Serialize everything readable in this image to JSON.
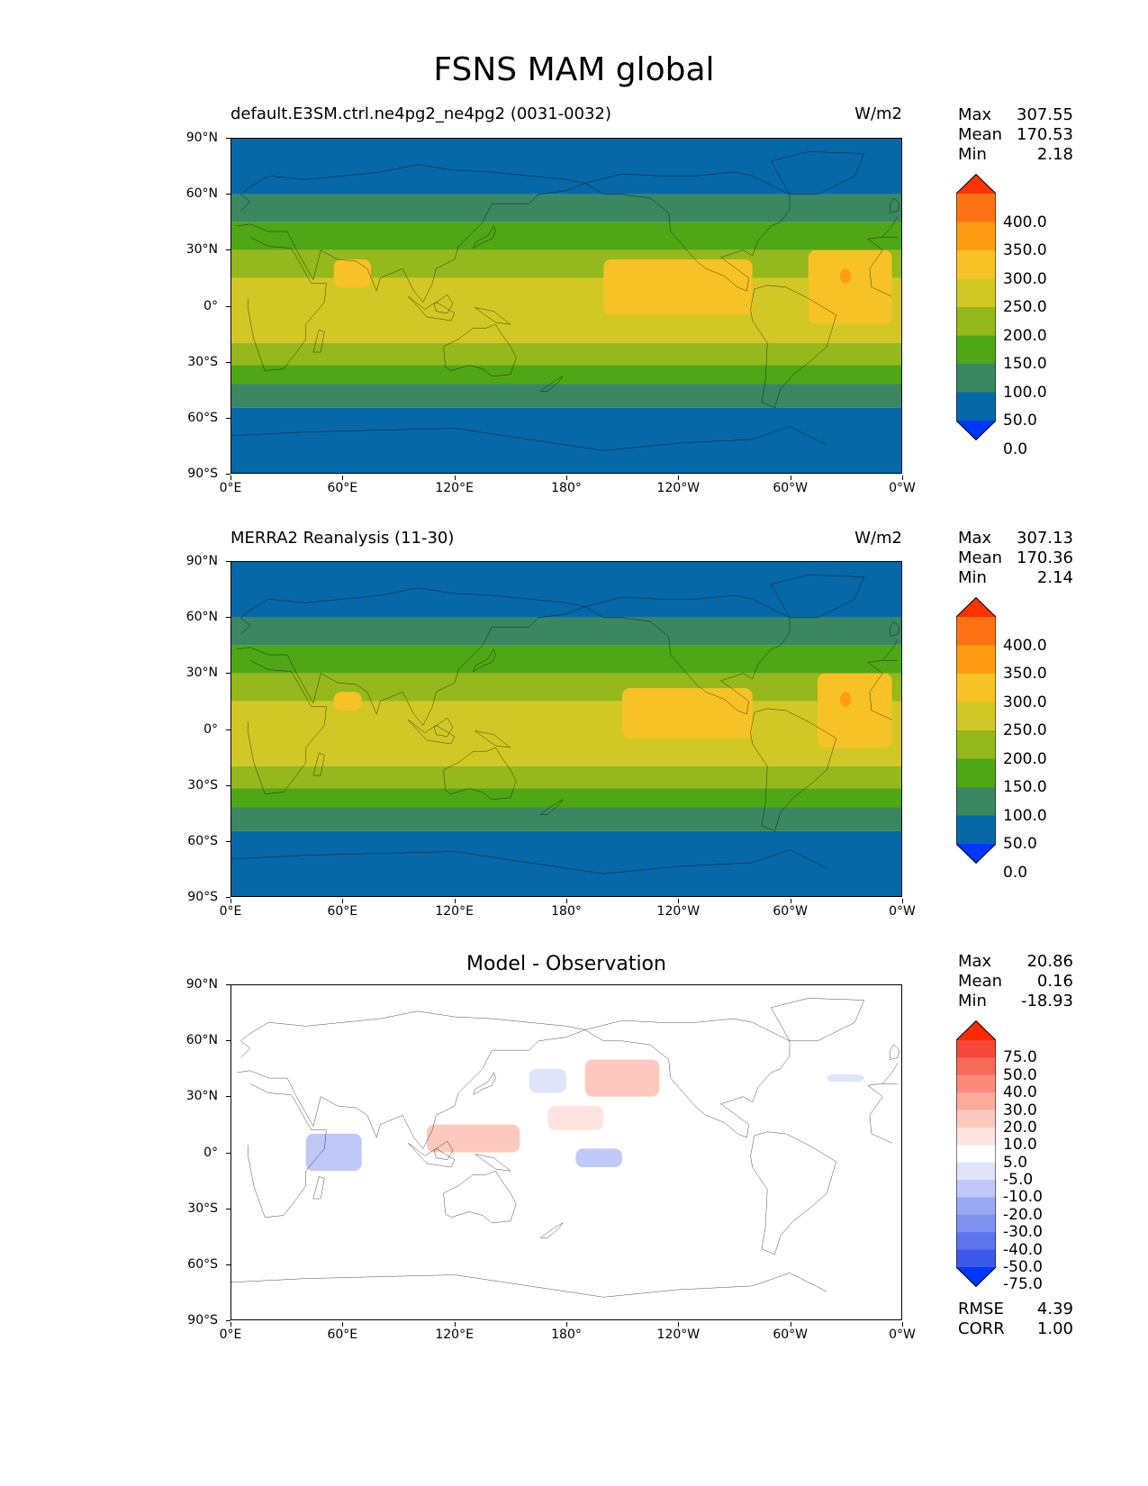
{
  "figure": {
    "title": "FSNS MAM global"
  },
  "axes": {
    "yticks": [
      "90°N",
      "60°N",
      "30°N",
      "0°",
      "30°S",
      "60°S",
      "90°S"
    ],
    "xticks": [
      "0°E",
      "60°E",
      "120°E",
      "180°",
      "120°W",
      "60°W",
      "0°W"
    ]
  },
  "panels": [
    {
      "id": "model",
      "title": "default.E3SM.ctrl.ne4pg2_ne4pg2 (0031-0032)",
      "units": "W/m2",
      "stats": [
        {
          "label": "Max",
          "value": "307.55"
        },
        {
          "label": "Mean",
          "value": "170.53"
        },
        {
          "label": "Min",
          "value": "2.18"
        }
      ],
      "colorbar": {
        "labels": [
          "400.0",
          "350.0",
          "300.0",
          "250.0",
          "200.0",
          "150.0",
          "100.0",
          "50.0",
          "0.0"
        ],
        "colors": [
          "#ff3300",
          "#ff7214",
          "#ff9c14",
          "#f7c225",
          "#d2c825",
          "#95b81c",
          "#4fa716",
          "#3a8761",
          "#0768a8",
          "#0037ff"
        ]
      }
    },
    {
      "id": "obs",
      "title": "MERRA2 Reanalysis (11-30)",
      "units": "W/m2",
      "stats": [
        {
          "label": "Max",
          "value": "307.13"
        },
        {
          "label": "Mean",
          "value": "170.36"
        },
        {
          "label": "Min",
          "value": "2.14"
        }
      ],
      "colorbar": {
        "labels": [
          "400.0",
          "350.0",
          "300.0",
          "250.0",
          "200.0",
          "150.0",
          "100.0",
          "50.0",
          "0.0"
        ],
        "colors": [
          "#ff3300",
          "#ff7214",
          "#ff9c14",
          "#f7c225",
          "#d2c825",
          "#95b81c",
          "#4fa716",
          "#3a8761",
          "#0768a8",
          "#0037ff"
        ]
      }
    },
    {
      "id": "diff",
      "title": "Model - Observation",
      "stats": [
        {
          "label": "Max",
          "value": "20.86"
        },
        {
          "label": "Mean",
          "value": "0.16"
        },
        {
          "label": "Min",
          "value": "-18.93"
        }
      ],
      "colorbar": {
        "labels": [
          "75.0",
          "50.0",
          "40.0",
          "30.0",
          "20.0",
          "10.0",
          "5.0",
          "-5.0",
          "-10.0",
          "-20.0",
          "-30.0",
          "-40.0",
          "-50.0",
          "-75.0"
        ],
        "colors": [
          "#ff2a00",
          "#f5483a",
          "#f86a5a",
          "#fa8b7c",
          "#fcab9d",
          "#fdc9bf",
          "#fee3de",
          "#ffffff",
          "#dfe4fb",
          "#bfc8f7",
          "#9aa9f3",
          "#7f91f1",
          "#5e75ee",
          "#3c59ea",
          "#0037ff"
        ]
      },
      "extra_stats": [
        {
          "label": "RMSE",
          "value": "4.39"
        },
        {
          "label": "CORR",
          "value": "1.00"
        }
      ]
    }
  ],
  "chart_data": [
    {
      "type": "heatmap",
      "title": "default.E3SM.ctrl.ne4pg2_ne4pg2 (0031-0032)",
      "units": "W/m2",
      "variable": "FSNS",
      "season": "MAM",
      "x": "longitude 0°E to 0°W",
      "y": "latitude 90°S to 90°N",
      "levels": [
        0,
        50,
        100,
        150,
        200,
        250,
        300,
        350,
        400
      ],
      "zonal_bands": [
        {
          "lat": [
            60,
            90
          ],
          "value": 40
        },
        {
          "lat": [
            45,
            60
          ],
          "value": 90
        },
        {
          "lat": [
            30,
            45
          ],
          "value": 140
        },
        {
          "lat": [
            15,
            30
          ],
          "value": 195
        },
        {
          "lat": [
            -20,
            15
          ],
          "value": 230
        },
        {
          "lat": [
            -32,
            -20
          ],
          "value": 190
        },
        {
          "lat": [
            -42,
            -32
          ],
          "value": 140
        },
        {
          "lat": [
            -55,
            -42
          ],
          "value": 90
        },
        {
          "lat": [
            -90,
            -55
          ],
          "value": 30
        }
      ],
      "features": [
        {
          "region": "Eastern Pacific",
          "lat": [
            -5,
            25
          ],
          "lon": [
            -160,
            -80
          ],
          "value": 270
        },
        {
          "region": "Tropical Atlantic",
          "lat": [
            -10,
            30
          ],
          "lon": [
            -50,
            -5
          ],
          "value": 275
        },
        {
          "region": "Atlantic maximum",
          "lat": [
            12,
            20
          ],
          "lon": [
            -33,
            -27
          ],
          "value": 305
        },
        {
          "region": "Arabian Sea",
          "lat": [
            10,
            25
          ],
          "lon": [
            55,
            75
          ],
          "value": 265
        }
      ],
      "max": 307.55,
      "mean": 170.53,
      "min": 2.18
    },
    {
      "type": "heatmap",
      "title": "MERRA2 Reanalysis (11-30)",
      "units": "W/m2",
      "variable": "FSNS",
      "season": "MAM",
      "levels": [
        0,
        50,
        100,
        150,
        200,
        250,
        300,
        350,
        400
      ],
      "zonal_bands": [
        {
          "lat": [
            60,
            90
          ],
          "value": 40
        },
        {
          "lat": [
            45,
            60
          ],
          "value": 90
        },
        {
          "lat": [
            30,
            45
          ],
          "value": 140
        },
        {
          "lat": [
            15,
            30
          ],
          "value": 195
        },
        {
          "lat": [
            -20,
            15
          ],
          "value": 230
        },
        {
          "lat": [
            -32,
            -20
          ],
          "value": 190
        },
        {
          "lat": [
            -42,
            -32
          ],
          "value": 140
        },
        {
          "lat": [
            -55,
            -42
          ],
          "value": 90
        },
        {
          "lat": [
            -90,
            -55
          ],
          "value": 30
        }
      ],
      "features": [
        {
          "region": "Eastern Pacific",
          "lat": [
            -5,
            22
          ],
          "lon": [
            -150,
            -80
          ],
          "value": 270
        },
        {
          "region": "Tropical Atlantic",
          "lat": [
            -10,
            30
          ],
          "lon": [
            -45,
            -5
          ],
          "value": 275
        },
        {
          "region": "Atlantic maximum",
          "lat": [
            12,
            20
          ],
          "lon": [
            -33,
            -27
          ],
          "value": 305
        },
        {
          "region": "Arabian Sea",
          "lat": [
            10,
            20
          ],
          "lon": [
            55,
            70
          ],
          "value": 265
        }
      ],
      "max": 307.13,
      "mean": 170.36,
      "min": 2.14
    },
    {
      "type": "heatmap",
      "title": "Model - Observation",
      "levels": [
        -75,
        -50,
        -40,
        -30,
        -20,
        -10,
        -5,
        5,
        10,
        20,
        30,
        40,
        50,
        75
      ],
      "features": [
        {
          "region": "West Pacific warm pool",
          "lat": [
            0,
            15
          ],
          "lon": [
            105,
            155
          ],
          "value": 12
        },
        {
          "region": "Central Pacific",
          "lat": [
            12,
            25
          ],
          "lon": [
            170,
            -160
          ],
          "value": 8
        },
        {
          "region": "North Pacific",
          "lat": [
            30,
            50
          ],
          "lon": [
            -170,
            -130
          ],
          "value": 10
        },
        {
          "region": "Western Indian Ocean",
          "lat": [
            -10,
            10
          ],
          "lon": [
            40,
            70
          ],
          "value": -12
        },
        {
          "region": "Kamchatka / NW Pacific",
          "lat": [
            32,
            45
          ],
          "lon": [
            160,
            180
          ],
          "value": -9
        },
        {
          "region": "Equatorial East Pacific",
          "lat": [
            -8,
            2
          ],
          "lon": [
            -175,
            -150
          ],
          "value": -12
        },
        {
          "region": "Arctic-Atlantic",
          "lat": [
            38,
            42
          ],
          "lon": [
            -40,
            -20
          ],
          "value": -6
        }
      ],
      "max": 20.86,
      "mean": 0.16,
      "min": -18.93,
      "rmse": 4.39,
      "corr": 1.0
    }
  ]
}
